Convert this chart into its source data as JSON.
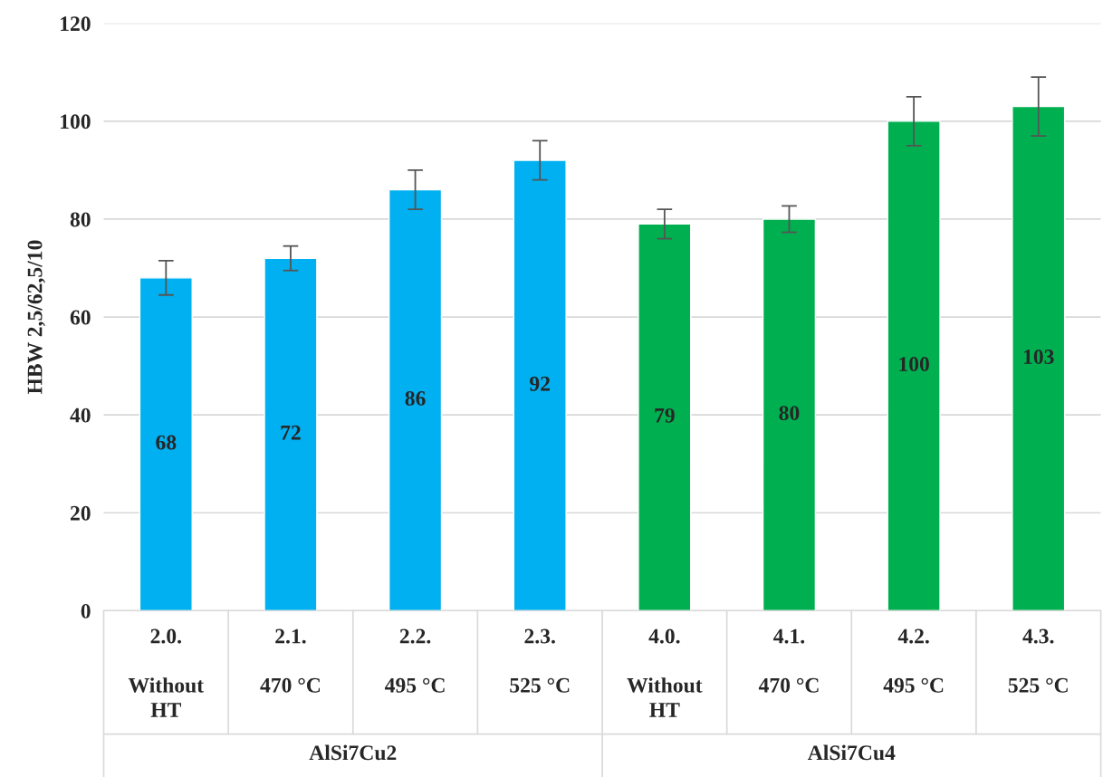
{
  "chart_data": {
    "type": "bar",
    "ylabel": "HBW 2,5/62,5/10",
    "categories": [
      "2.0.\n\nWithout\nHT",
      "2.1.\n\n470 °C",
      "2.2.\n\n495 °C",
      "2.3.\n\n525 °C",
      "4.0.\n\nWithout\nHT",
      "4.1.\n\n470 °C",
      "4.2.\n\n495 °C",
      "4.3.\n\n525 °C"
    ],
    "values": [
      68,
      72,
      86,
      92,
      79,
      80,
      100,
      103
    ],
    "errors": [
      3.5,
      2.5,
      4,
      4,
      3,
      2.7,
      5,
      6
    ],
    "colors": [
      "#00b0f0",
      "#00b0f0",
      "#00b0f0",
      "#00b0f0",
      "#00b050",
      "#00b050",
      "#00b050",
      "#00b050"
    ],
    "data_labels": true,
    "annotations": [
      "AlSi7Cu2",
      "AlSi7Cu4"
    ],
    "ylim": [
      0,
      120
    ],
    "yticks": [
      0,
      20,
      40,
      60,
      80,
      100,
      120
    ],
    "grid": "y"
  }
}
